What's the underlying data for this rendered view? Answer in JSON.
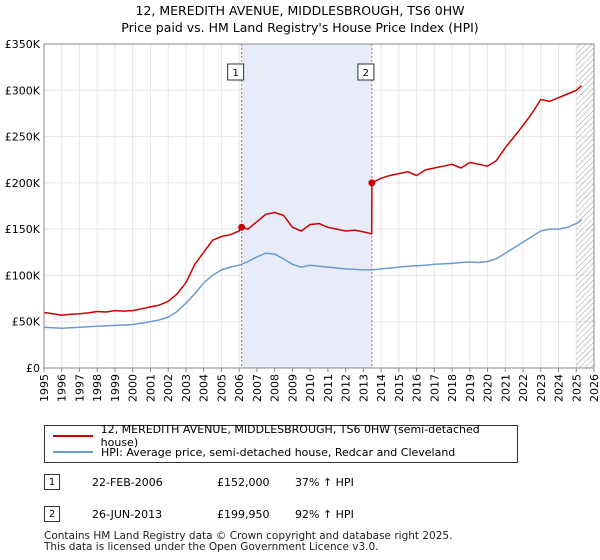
{
  "title_line1": "12, MEREDITH AVENUE, MIDDLESBROUGH, TS6 0HW",
  "title_line2": "Price paid vs. HM Land Registry's House Price Index (HPI)",
  "chart_data": {
    "type": "line",
    "title": "12, MEREDITH AVENUE, MIDDLESBROUGH, TS6 0HW",
    "subtitle": "Price paid vs. HM Land Registry's House Price Index (HPI)",
    "xlabel": "",
    "ylabel": "",
    "xlim": [
      1995,
      2026
    ],
    "ylim": [
      0,
      350000
    ],
    "x_ticks": [
      "1995",
      "1996",
      "1997",
      "1998",
      "1999",
      "2000",
      "2001",
      "2002",
      "2003",
      "2004",
      "2005",
      "2006",
      "2007",
      "2008",
      "2009",
      "2010",
      "2011",
      "2012",
      "2013",
      "2014",
      "2015",
      "2016",
      "2017",
      "2018",
      "2019",
      "2020",
      "2021",
      "2022",
      "2023",
      "2024",
      "2025",
      "2026"
    ],
    "y_ticks": [
      {
        "value": 0,
        "label": "£0"
      },
      {
        "value": 50000,
        "label": "£50K"
      },
      {
        "value": 100000,
        "label": "£100K"
      },
      {
        "value": 150000,
        "label": "£150K"
      },
      {
        "value": 200000,
        "label": "£200K"
      },
      {
        "value": 250000,
        "label": "£250K"
      },
      {
        "value": 300000,
        "label": "£300K"
      },
      {
        "value": 350000,
        "label": "£350K"
      }
    ],
    "grid": true,
    "shaded_period": [
      2006.14,
      2013.48
    ],
    "forecast_from": 2025.0,
    "series": [
      {
        "name": "12, MEREDITH AVENUE, MIDDLESBROUGH, TS6 0HW (semi-detached house)",
        "color": "#cc0000",
        "x": [
          1995.0,
          1995.5,
          1996.0,
          1996.5,
          1997.0,
          1997.5,
          1998.0,
          1998.5,
          1999.0,
          1999.5,
          2000.0,
          2000.5,
          2001.0,
          2001.5,
          2002.0,
          2002.5,
          2003.0,
          2003.5,
          2004.0,
          2004.5,
          2005.0,
          2005.5,
          2006.0,
          2006.14,
          2006.5,
          2007.0,
          2007.5,
          2008.0,
          2008.5,
          2009.0,
          2009.5,
          2010.0,
          2010.5,
          2011.0,
          2011.5,
          2012.0,
          2012.5,
          2013.0,
          2013.47,
          2013.48,
          2014.0,
          2014.5,
          2015.0,
          2015.5,
          2016.0,
          2016.5,
          2017.0,
          2017.5,
          2018.0,
          2018.5,
          2019.0,
          2019.5,
          2020.0,
          2020.5,
          2021.0,
          2021.5,
          2022.0,
          2022.5,
          2023.0,
          2023.5,
          2024.0,
          2024.5,
          2025.0,
          2025.3
        ],
        "y": [
          60000,
          58500,
          57000,
          58000,
          58500,
          59500,
          61000,
          60500,
          62000,
          61500,
          62000,
          64000,
          66000,
          68000,
          72000,
          80000,
          92000,
          112000,
          125000,
          138000,
          142000,
          144000,
          148000,
          152000,
          150000,
          158000,
          166000,
          168000,
          165000,
          152000,
          148000,
          155000,
          156000,
          152000,
          150000,
          148000,
          149000,
          147000,
          145000,
          199950,
          205000,
          208000,
          210000,
          212000,
          208000,
          214000,
          216000,
          218000,
          220000,
          216000,
          222000,
          220000,
          218000,
          224000,
          238000,
          250000,
          262000,
          275000,
          290000,
          288000,
          292000,
          296000,
          300000,
          305000
        ]
      },
      {
        "name": "HPI: Average price, semi-detached house, Redcar and Cleveland",
        "color": "#6c9bd2",
        "x": [
          1995.0,
          1995.5,
          1996.0,
          1996.5,
          1997.0,
          1997.5,
          1998.0,
          1998.5,
          1999.0,
          1999.5,
          2000.0,
          2000.5,
          2001.0,
          2001.5,
          2002.0,
          2002.5,
          2003.0,
          2003.5,
          2004.0,
          2004.5,
          2005.0,
          2005.5,
          2006.0,
          2006.5,
          2007.0,
          2007.5,
          2008.0,
          2008.5,
          2009.0,
          2009.5,
          2010.0,
          2010.5,
          2011.0,
          2011.5,
          2012.0,
          2012.5,
          2013.0,
          2013.5,
          2014.0,
          2014.5,
          2015.0,
          2015.5,
          2016.0,
          2016.5,
          2017.0,
          2017.5,
          2018.0,
          2018.5,
          2019.0,
          2019.5,
          2020.0,
          2020.5,
          2021.0,
          2021.5,
          2022.0,
          2022.5,
          2023.0,
          2023.5,
          2024.0,
          2024.5,
          2025.0,
          2025.3
        ],
        "y": [
          44000,
          43500,
          43000,
          43500,
          44000,
          44500,
          45000,
          45500,
          46000,
          46500,
          47000,
          48500,
          50000,
          52000,
          55000,
          61000,
          70000,
          80000,
          92000,
          100000,
          106000,
          109000,
          111000,
          115000,
          120000,
          124000,
          123000,
          118000,
          112000,
          109000,
          111000,
          110000,
          109000,
          108000,
          107000,
          106500,
          106000,
          106000,
          107000,
          108000,
          109000,
          110000,
          110500,
          111000,
          112000,
          112500,
          113000,
          114000,
          114500,
          114000,
          115000,
          118000,
          124000,
          130000,
          136000,
          142000,
          148000,
          150000,
          150000,
          152000,
          156000,
          160000
        ]
      }
    ],
    "annotations": [
      {
        "label": "1",
        "x": 2006.14,
        "y": 152000
      },
      {
        "label": "2",
        "x": 2013.48,
        "y": 199950
      }
    ]
  },
  "legend": {
    "items": [
      {
        "label": "12, MEREDITH AVENUE, MIDDLESBROUGH, TS6 0HW (semi-detached house)",
        "color": "#cc0000"
      },
      {
        "label": "HPI: Average price, semi-detached house, Redcar and Cleveland",
        "color": "#6c9bd2"
      }
    ]
  },
  "sales": [
    {
      "num": "1",
      "date": "22-FEB-2006",
      "price": "£152,000",
      "hpi": "37% ↑ HPI"
    },
    {
      "num": "2",
      "date": "26-JUN-2013",
      "price": "£199,950",
      "hpi": "92% ↑ HPI"
    }
  ],
  "footer": {
    "line1": "Contains HM Land Registry data © Crown copyright and database right 2025.",
    "line2": "This data is licensed under the Open Government Licence v3.0."
  }
}
